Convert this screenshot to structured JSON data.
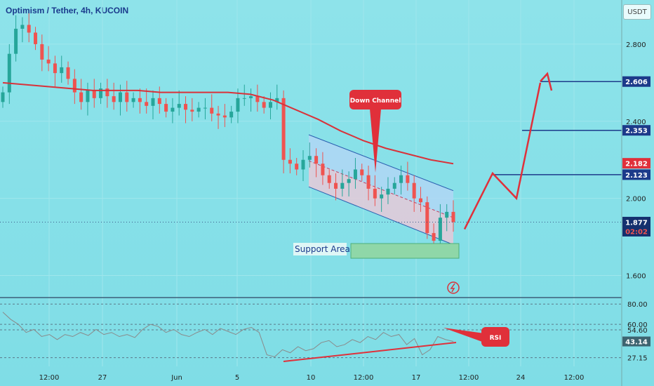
{
  "header": {
    "title": "Optimism / Tether, 4h, KUCOIN",
    "currency": "USDT"
  },
  "chart_data": [
    {
      "type": "candlestick",
      "ylim": [
        1.5,
        3.0
      ],
      "y_ticks": [
        "2.800",
        "2.400",
        "2.000",
        "1.600"
      ],
      "x_ticks": [
        "12:00",
        "27",
        "Jun",
        "5",
        "10",
        "12:00",
        "17",
        "12:00",
        "24",
        "12:00"
      ],
      "moving_average": [
        2.6,
        2.59,
        2.58,
        2.57,
        2.56,
        2.56,
        2.56,
        2.55,
        2.55,
        2.55,
        2.55,
        2.54,
        2.51,
        2.46,
        2.41,
        2.35,
        2.3,
        2.26,
        2.23,
        2.2,
        2.18
      ],
      "channel": {
        "label": "Down Channel",
        "upper": [
          [
            0,
            2.33
          ],
          [
            1,
            2.04
          ]
        ],
        "lower": [
          [
            0,
            2.06
          ],
          [
            1,
            1.76
          ]
        ]
      },
      "support": {
        "label": "Support Area",
        "range": [
          1.68,
          1.74
        ]
      },
      "levels": [
        {
          "value": "2.606",
          "style": "navy"
        },
        {
          "value": "2.353",
          "style": "navy"
        },
        {
          "value": "2.182",
          "style": "red"
        },
        {
          "value": "2.123",
          "style": "navy"
        },
        {
          "value": "1.877",
          "style": "navy"
        }
      ],
      "countdown": "02:02",
      "projection": [
        1.84,
        2.13,
        2.0,
        2.6
      ],
      "candles_close": [
        2.55,
        2.75,
        2.88,
        2.9,
        2.86,
        2.8,
        2.72,
        2.7,
        2.65,
        2.68,
        2.62,
        2.55,
        2.5,
        2.56,
        2.52,
        2.57,
        2.53,
        2.5,
        2.55,
        2.5,
        2.52,
        2.5,
        2.48,
        2.52,
        2.49,
        2.45,
        2.47,
        2.49,
        2.46,
        2.45,
        2.47,
        2.47,
        2.44,
        2.43,
        2.42,
        2.45,
        2.52,
        2.52,
        2.53,
        2.5,
        2.47,
        2.5,
        2.52,
        2.2,
        2.18,
        2.15,
        2.2,
        2.22,
        2.18,
        2.12,
        2.08,
        2.05,
        2.08,
        2.1,
        2.15,
        2.12,
        2.05,
        2.0,
        2.02,
        2.05,
        2.08,
        2.12,
        2.08,
        2.0,
        1.98,
        1.82,
        1.78,
        1.9,
        1.93,
        1.877
      ]
    },
    {
      "type": "line",
      "ylim": [
        20,
        85
      ],
      "y_ticks": [
        "80.00",
        "60.00",
        "54.60",
        "27.15"
      ],
      "current_badge": "43.14",
      "annotation": "RSI",
      "values": [
        72,
        65,
        60,
        52,
        55,
        48,
        50,
        45,
        50,
        48,
        52,
        49,
        55,
        50,
        52,
        48,
        50,
        47,
        55,
        60,
        58,
        52,
        55,
        50,
        48,
        52,
        55,
        50,
        56,
        53,
        50,
        55,
        57,
        52,
        30,
        28,
        35,
        32,
        38,
        34,
        36,
        42,
        44,
        38,
        40,
        45,
        42,
        48,
        45,
        52,
        48,
        50,
        40,
        46,
        30,
        35,
        48,
        45,
        43.14
      ]
    }
  ]
}
